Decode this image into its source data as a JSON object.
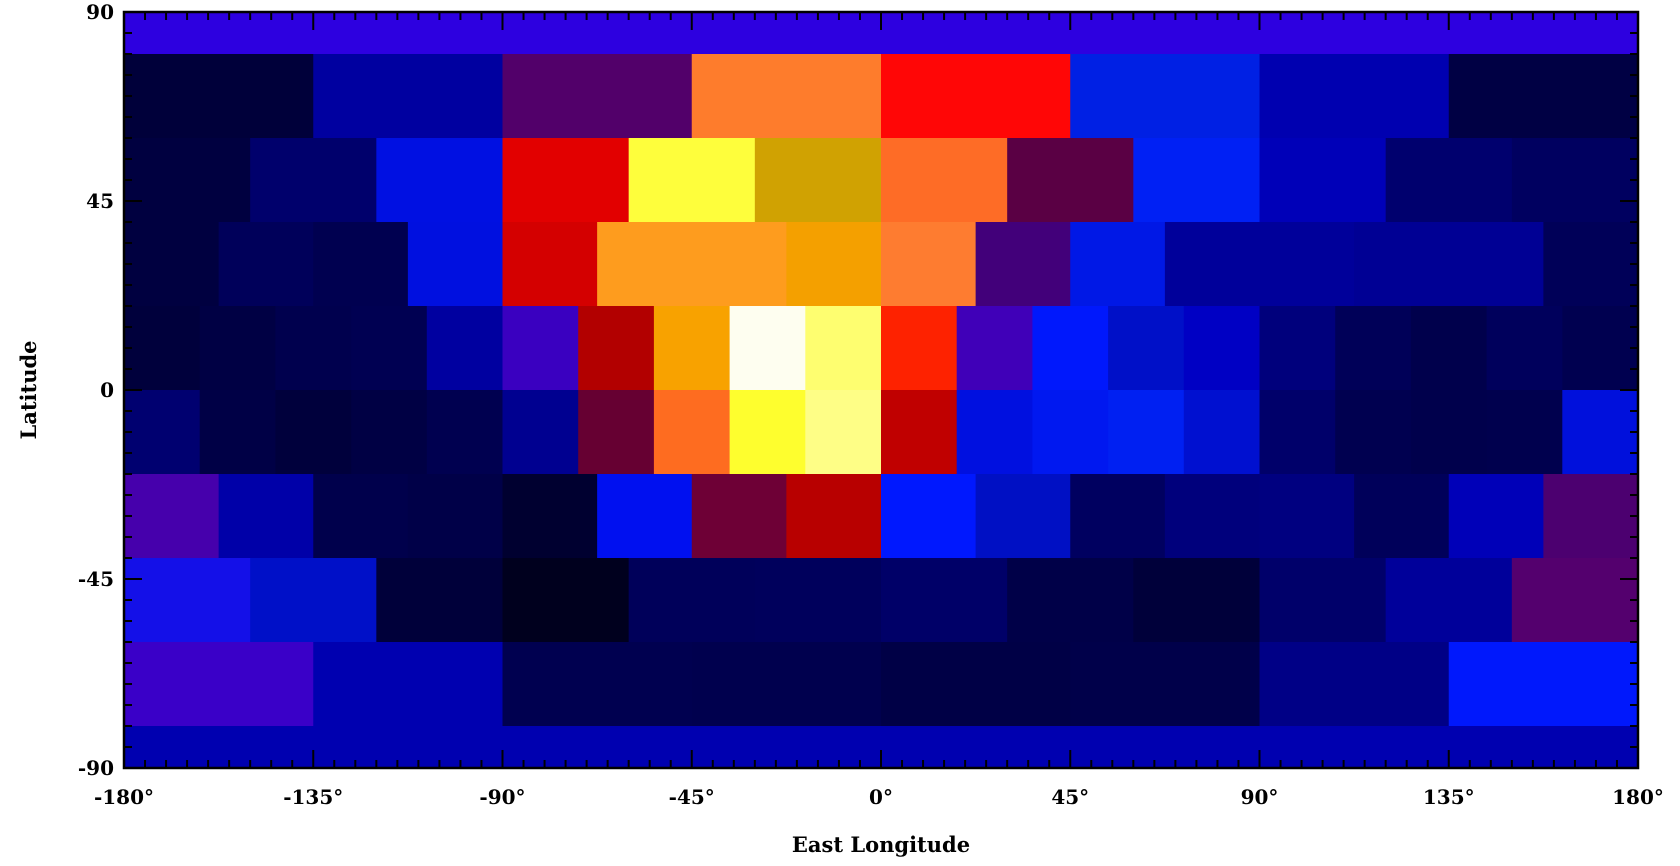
{
  "chart_data": {
    "type": "heatmap",
    "title": "",
    "xlabel": "East Longitude",
    "ylabel": "Latitude",
    "xlim": [
      -180,
      180
    ],
    "ylim": [
      -90,
      90
    ],
    "x_ticks": [
      -180,
      -135,
      -90,
      -45,
      0,
      45,
      90,
      135,
      180
    ],
    "x_tick_labels": [
      "-180°",
      "-135°",
      "-90°",
      "-45°",
      "0°",
      "45°",
      "90°",
      "135°",
      "180°"
    ],
    "y_ticks": [
      -90,
      -45,
      0,
      45,
      90
    ],
    "y_tick_labels": [
      "-90",
      "-45",
      "0",
      "45",
      "90"
    ],
    "grid": false,
    "colorscale": "black-blue-purple-red-orange-yellow-white",
    "bands": [
      {
        "lat": [
          80,
          90
        ],
        "cells": [
          {
            "lon": [
              -180,
              180
            ],
            "color": "#2d00e0"
          }
        ]
      },
      {
        "lat": [
          60,
          80
        ],
        "cells": [
          {
            "lon": [
              -180,
              -135
            ],
            "color": "#00003a"
          },
          {
            "lon": [
              -135,
              -90
            ],
            "color": "#0000a0"
          },
          {
            "lon": [
              -90,
              -45
            ],
            "color": "#52006a"
          },
          {
            "lon": [
              -45,
              0
            ],
            "color": "#fe7c2c"
          },
          {
            "lon": [
              0,
              45
            ],
            "color": "#ff0606"
          },
          {
            "lon": [
              45,
              90
            ],
            "color": "#0020e4"
          },
          {
            "lon": [
              90,
              135
            ],
            "color": "#0000b0"
          },
          {
            "lon": [
              135,
              180
            ],
            "color": "#000044"
          }
        ]
      },
      {
        "lat": [
          40,
          60
        ],
        "cells": [
          {
            "lon": [
              -180,
              -150
            ],
            "color": "#000040"
          },
          {
            "lon": [
              -150,
              -120
            ],
            "color": "#00006c"
          },
          {
            "lon": [
              -120,
              -90
            ],
            "color": "#0010e2"
          },
          {
            "lon": [
              -90,
              -60
            ],
            "color": "#e20000"
          },
          {
            "lon": [
              -60,
              -30
            ],
            "color": "#fefe3c"
          },
          {
            "lon": [
              -30,
              0
            ],
            "color": "#d0a202"
          },
          {
            "lon": [
              0,
              30
            ],
            "color": "#fe6c26"
          },
          {
            "lon": [
              30,
              60
            ],
            "color": "#5a0044"
          },
          {
            "lon": [
              60,
              90
            ],
            "color": "#0020f4"
          },
          {
            "lon": [
              90,
              120
            ],
            "color": "#0000b8"
          },
          {
            "lon": [
              120,
              150
            ],
            "color": "#00006e"
          },
          {
            "lon": [
              150,
              180
            ],
            "color": "#000060"
          }
        ]
      },
      {
        "lat": [
          20,
          40
        ],
        "cells": [
          {
            "lon": [
              -180,
              -157.5
            ],
            "color": "#000040"
          },
          {
            "lon": [
              -157.5,
              -135
            ],
            "color": "#00005a"
          },
          {
            "lon": [
              -135,
              -112.5
            ],
            "color": "#000050"
          },
          {
            "lon": [
              -112.5,
              -90
            ],
            "color": "#0010e0"
          },
          {
            "lon": [
              -90,
              -67.5
            ],
            "color": "#d40000"
          },
          {
            "lon": [
              -67.5,
              -22.5
            ],
            "color": "#fe9c1e"
          },
          {
            "lon": [
              -22.5,
              0
            ],
            "color": "#f4a000"
          },
          {
            "lon": [
              0,
              22.5
            ],
            "color": "#fe7c30"
          },
          {
            "lon": [
              22.5,
              45
            ],
            "color": "#42007a"
          },
          {
            "lon": [
              45,
              67.5
            ],
            "color": "#0018e6"
          },
          {
            "lon": [
              67.5,
              112.5
            ],
            "color": "#00009a"
          },
          {
            "lon": [
              112.5,
              157.5
            ],
            "color": "#000094"
          },
          {
            "lon": [
              157.5,
              180
            ],
            "color": "#000058"
          }
        ]
      },
      {
        "lat": [
          0,
          20
        ],
        "cells": [
          {
            "lon": [
              -180,
              -162
            ],
            "color": "#00003c"
          },
          {
            "lon": [
              -162,
              -144
            ],
            "color": "#000044"
          },
          {
            "lon": [
              -144,
              -126
            ],
            "color": "#00004e"
          },
          {
            "lon": [
              -126,
              -108
            ],
            "color": "#000052"
          },
          {
            "lon": [
              -108,
              -90
            ],
            "color": "#0000a0"
          },
          {
            "lon": [
              -90,
              -72
            ],
            "color": "#3a00c0"
          },
          {
            "lon": [
              -72,
              -54
            ],
            "color": "#b20000"
          },
          {
            "lon": [
              -54,
              -36
            ],
            "color": "#f8a200"
          },
          {
            "lon": [
              -36,
              -18
            ],
            "color": "#fefef0"
          },
          {
            "lon": [
              -18,
              0
            ],
            "color": "#fefe70"
          },
          {
            "lon": [
              0,
              18
            ],
            "color": "#fe2200"
          },
          {
            "lon": [
              18,
              36
            ],
            "color": "#4000b8"
          },
          {
            "lon": [
              36,
              54
            ],
            "color": "#0018fc"
          },
          {
            "lon": [
              54,
              72
            ],
            "color": "#0010c8"
          },
          {
            "lon": [
              72,
              90
            ],
            "color": "#0000c4"
          },
          {
            "lon": [
              90,
              108
            ],
            "color": "#00007c"
          },
          {
            "lon": [
              108,
              126
            ],
            "color": "#000058"
          },
          {
            "lon": [
              126,
              144
            ],
            "color": "#00004c"
          },
          {
            "lon": [
              144,
              162
            ],
            "color": "#00005c"
          },
          {
            "lon": [
              162,
              180
            ],
            "color": "#000050"
          }
        ]
      },
      {
        "lat": [
          -20,
          0
        ],
        "cells": [
          {
            "lon": [
              -180,
              -162
            ],
            "color": "#000070"
          },
          {
            "lon": [
              -162,
              -144
            ],
            "color": "#000046"
          },
          {
            "lon": [
              -144,
              -126
            ],
            "color": "#00003c"
          },
          {
            "lon": [
              -126,
              -108
            ],
            "color": "#000044"
          },
          {
            "lon": [
              -108,
              -90
            ],
            "color": "#000050"
          },
          {
            "lon": [
              -90,
              -72
            ],
            "color": "#000090"
          },
          {
            "lon": [
              -72,
              -54
            ],
            "color": "#660032"
          },
          {
            "lon": [
              -54,
              -36
            ],
            "color": "#fe6c20"
          },
          {
            "lon": [
              -36,
              -18
            ],
            "color": "#fefe2e"
          },
          {
            "lon": [
              -18,
              0
            ],
            "color": "#fefe86"
          },
          {
            "lon": [
              0,
              18
            ],
            "color": "#c00000"
          },
          {
            "lon": [
              18,
              36
            ],
            "color": "#0010e0"
          },
          {
            "lon": [
              36,
              54
            ],
            "color": "#0018f0"
          },
          {
            "lon": [
              54,
              72
            ],
            "color": "#0020f2"
          },
          {
            "lon": [
              72,
              90
            ],
            "color": "#0010d0"
          },
          {
            "lon": [
              90,
              108
            ],
            "color": "#00006a"
          },
          {
            "lon": [
              108,
              126
            ],
            "color": "#000050"
          },
          {
            "lon": [
              126,
              144
            ],
            "color": "#00004c"
          },
          {
            "lon": [
              144,
              162
            ],
            "color": "#00004e"
          },
          {
            "lon": [
              162,
              180
            ],
            "color": "#0010dc"
          }
        ]
      },
      {
        "lat": [
          -40,
          -20
        ],
        "cells": [
          {
            "lon": [
              -180,
              -157.5
            ],
            "color": "#4600ac"
          },
          {
            "lon": [
              -157.5,
              -135
            ],
            "color": "#0000a8"
          },
          {
            "lon": [
              -135,
              -112.5
            ],
            "color": "#00004c"
          },
          {
            "lon": [
              -112.5,
              -90
            ],
            "color": "#000048"
          },
          {
            "lon": [
              -90,
              -67.5
            ],
            "color": "#000030"
          },
          {
            "lon": [
              -67.5,
              -45
            ],
            "color": "#0010f0"
          },
          {
            "lon": [
              -45,
              -22.5
            ],
            "color": "#6e0036"
          },
          {
            "lon": [
              -22.5,
              0
            ],
            "color": "#b80000"
          },
          {
            "lon": [
              0,
              22.5
            ],
            "color": "#0018fe"
          },
          {
            "lon": [
              22.5,
              45
            ],
            "color": "#0010c4"
          },
          {
            "lon": [
              45,
              67.5
            ],
            "color": "#000060"
          },
          {
            "lon": [
              67.5,
              90
            ],
            "color": "#00007c"
          },
          {
            "lon": [
              90,
              112.5
            ],
            "color": "#000080"
          },
          {
            "lon": [
              112.5,
              135
            ],
            "color": "#00005a"
          },
          {
            "lon": [
              135,
              157.5
            ],
            "color": "#0000b8"
          },
          {
            "lon": [
              157.5,
              180
            ],
            "color": "#4c0070"
          }
        ]
      },
      {
        "lat": [
          -60,
          -40
        ],
        "cells": [
          {
            "lon": [
              -180,
              -150
            ],
            "color": "#1410e8"
          },
          {
            "lon": [
              -150,
              -120
            ],
            "color": "#0010c8"
          },
          {
            "lon": [
              -120,
              -90
            ],
            "color": "#00003a"
          },
          {
            "lon": [
              -90,
              -60
            ],
            "color": "#00001e"
          },
          {
            "lon": [
              -60,
              -30
            ],
            "color": "#00005a"
          },
          {
            "lon": [
              -30,
              0
            ],
            "color": "#00005c"
          },
          {
            "lon": [
              0,
              30
            ],
            "color": "#000068"
          },
          {
            "lon": [
              30,
              60
            ],
            "color": "#000048"
          },
          {
            "lon": [
              60,
              90
            ],
            "color": "#00003a"
          },
          {
            "lon": [
              90,
              120
            ],
            "color": "#00006a"
          },
          {
            "lon": [
              120,
              150
            ],
            "color": "#00009a"
          },
          {
            "lon": [
              150,
              180
            ],
            "color": "#54006e"
          }
        ]
      },
      {
        "lat": [
          -80,
          -60
        ],
        "cells": [
          {
            "lon": [
              -180,
              -135
            ],
            "color": "#3a00c8"
          },
          {
            "lon": [
              -135,
              -90
            ],
            "color": "#0000b0"
          },
          {
            "lon": [
              -90,
              -45
            ],
            "color": "#000050"
          },
          {
            "lon": [
              -45,
              0
            ],
            "color": "#00004e"
          },
          {
            "lon": [
              0,
              45
            ],
            "color": "#000046"
          },
          {
            "lon": [
              45,
              90
            ],
            "color": "#00004a"
          },
          {
            "lon": [
              90,
              135
            ],
            "color": "#000086"
          },
          {
            "lon": [
              135,
              180
            ],
            "color": "#0018fc"
          }
        ]
      },
      {
        "lat": [
          -90,
          -80
        ],
        "cells": [
          {
            "lon": [
              -180,
              180
            ],
            "color": "#0000b0"
          }
        ]
      }
    ]
  }
}
